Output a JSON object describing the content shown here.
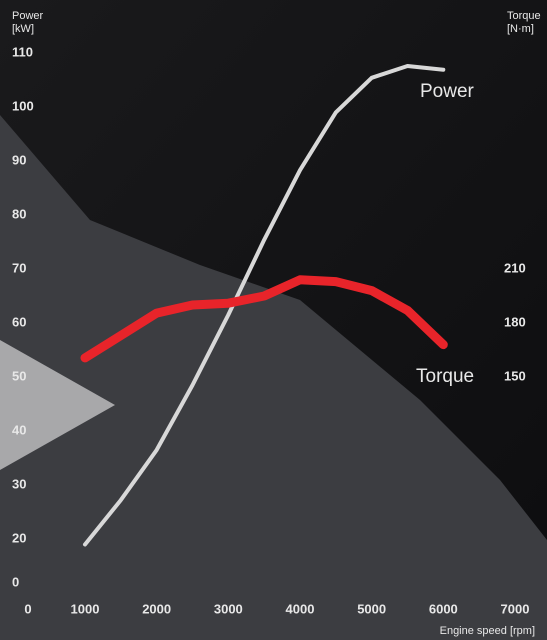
{
  "chart_data": {
    "type": "line",
    "ylabel": [
      "Power",
      "[kW]"
    ],
    "y2label": [
      "Torque",
      "[N·m]"
    ],
    "xlabel": "Engine speed [rpm]",
    "x": [
      1000,
      1500,
      2000,
      2500,
      3000,
      3500,
      4000,
      4500,
      5000,
      5500,
      6000
    ],
    "series": [
      {
        "name": "Power",
        "color": "#d8d8d8",
        "values": [
          17.5,
          27.2,
          36.5,
          48.5,
          61.5,
          75.4,
          88.3,
          99,
          105.4,
          107.6,
          106.9
        ]
      },
      {
        "name": "Torque",
        "color": "#e8242a",
        "axis": "y2",
        "values": [
          160.6,
          173,
          185.5,
          190,
          191,
          195,
          204,
          203,
          198,
          187,
          168
        ]
      }
    ],
    "xlim": [
      0,
      7000
    ],
    "xticks": [
      0,
      1000,
      2000,
      3000,
      4000,
      5000,
      6000,
      7000
    ],
    "ylim": [
      0,
      110
    ],
    "yticks": [
      0,
      20,
      30,
      40,
      50,
      60,
      70,
      80,
      90,
      100,
      110
    ],
    "y2lim": [
      60,
      330
    ],
    "y2ticks": [
      150,
      180,
      210
    ]
  }
}
